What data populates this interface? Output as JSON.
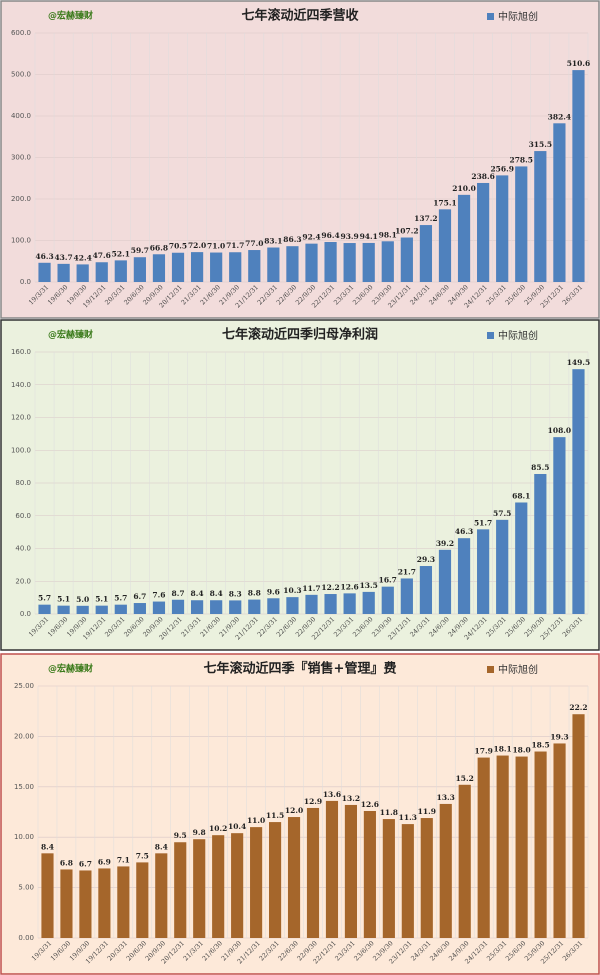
{
  "chart_data": [
    {
      "type": "bar",
      "title": "七年滚动近四季营收",
      "watermark": "@宏赫臻财",
      "background": "#f2dcdb",
      "border": "#888888",
      "categories": [
        "19/3/31",
        "19/6/30",
        "19/9/30",
        "19/12/31",
        "20/3/31",
        "20/6/30",
        "20/9/30",
        "20/12/31",
        "21/3/31",
        "21/6/30",
        "21/9/30",
        "21/12/31",
        "22/3/31",
        "22/6/30",
        "22/9/30",
        "22/12/31",
        "23/3/31",
        "23/6/30",
        "23/9/30",
        "23/12/31",
        "24/3/31",
        "24/6/30",
        "24/9/30",
        "24/12/31",
        "25/3/31",
        "25/6/30",
        "25/9/30",
        "25/12/31",
        "26/3/31"
      ],
      "series": [
        {
          "name": "中际旭创",
          "color": "#4f81bd",
          "values": [
            46.3,
            43.7,
            42.4,
            47.6,
            52.1,
            59.7,
            66.8,
            70.5,
            72.0,
            71.0,
            71.7,
            77.0,
            83.1,
            86.3,
            92.4,
            96.4,
            93.9,
            94.1,
            98.1,
            107.2,
            137.2,
            175.1,
            210.0,
            238.6,
            256.9,
            278.5,
            315.5,
            382.4,
            510.6
          ],
          "value_labels": [
            "46.3",
            "43.7",
            "42.4",
            "47.6",
            "52.1",
            "59.7",
            "66.8",
            "70.5",
            "72.0",
            "71.0",
            "71.7",
            "77.0",
            "83.1",
            "86.3",
            "92.4",
            "96.4",
            "93.9",
            "94.1",
            "98.1",
            "107.2",
            "137.2",
            "175.1",
            "210.0",
            "238.6",
            "256.9",
            "278.5",
            "315.5",
            "382.4",
            "510.6"
          ]
        }
      ],
      "ylim": [
        0,
        600
      ],
      "yticks": [
        {
          "value": 0,
          "label": "0.0"
        },
        {
          "value": 100,
          "label": "100.0"
        },
        {
          "value": 200,
          "label": "200.0"
        },
        {
          "value": 300,
          "label": "300.0"
        },
        {
          "value": 400,
          "label": "400.0"
        },
        {
          "value": 500,
          "label": "500.0"
        },
        {
          "value": 600,
          "label": "600.0"
        }
      ],
      "grid": true
    },
    {
      "type": "bar",
      "title": "七年滚动近四季归母净利润",
      "watermark": "@宏赫臻财",
      "background": "#ebf1de",
      "border": "#333333",
      "categories": [
        "19/3/31",
        "19/6/30",
        "19/9/30",
        "19/12/31",
        "20/3/31",
        "20/6/30",
        "20/9/30",
        "20/12/31",
        "21/3/31",
        "21/6/30",
        "21/9/30",
        "21/12/31",
        "22/3/31",
        "22/6/30",
        "22/9/30",
        "22/12/31",
        "23/3/31",
        "23/6/30",
        "23/9/30",
        "23/12/31",
        "24/3/31",
        "24/6/30",
        "24/9/30",
        "24/12/31",
        "25/3/31",
        "25/6/30",
        "25/9/30",
        "25/12/31",
        "26/3/31"
      ],
      "series": [
        {
          "name": "中际旭创",
          "color": "#4f81bd",
          "values": [
            5.7,
            5.1,
            5.0,
            5.1,
            5.7,
            6.7,
            7.6,
            8.7,
            8.4,
            8.4,
            8.3,
            8.8,
            9.6,
            10.3,
            11.7,
            12.2,
            12.6,
            13.5,
            16.7,
            21.7,
            29.3,
            39.2,
            46.3,
            51.7,
            57.5,
            68.1,
            85.5,
            108.0,
            149.5
          ],
          "value_labels": [
            "5.7",
            "5.1",
            "5.0",
            "5.1",
            "5.7",
            "6.7",
            "7.6",
            "8.7",
            "8.4",
            "8.4",
            "8.3",
            "8.8",
            "9.6",
            "10.3",
            "11.7",
            "12.2",
            "12.6",
            "13.5",
            "16.7",
            "21.7",
            "29.3",
            "39.2",
            "46.3",
            "51.7",
            "57.5",
            "68.1",
            "85.5",
            "108.0",
            "149.5"
          ]
        }
      ],
      "ylim": [
        0,
        160
      ],
      "yticks": [
        {
          "value": 0,
          "label": "0.0"
        },
        {
          "value": 20,
          "label": "20.0"
        },
        {
          "value": 40,
          "label": "40.0"
        },
        {
          "value": 60,
          "label": "60.0"
        },
        {
          "value": 80,
          "label": "80.0"
        },
        {
          "value": 100,
          "label": "100.0"
        },
        {
          "value": 120,
          "label": "120.0"
        },
        {
          "value": 140,
          "label": "140.0"
        },
        {
          "value": 160,
          "label": "160.0"
        }
      ],
      "grid": true
    },
    {
      "type": "bar",
      "title": "七年滚动近四季『销售+管理』费",
      "watermark": "@宏赫臻财",
      "background": "#fde9d9",
      "border": "#c0504d",
      "categories": [
        "19/3/31",
        "19/6/30",
        "19/9/30",
        "19/12/31",
        "20/3/31",
        "20/6/30",
        "20/9/30",
        "20/12/31",
        "21/3/31",
        "21/6/30",
        "21/9/30",
        "21/12/31",
        "22/3/31",
        "22/6/30",
        "22/9/30",
        "22/12/31",
        "23/3/31",
        "23/6/30",
        "23/9/30",
        "23/12/31",
        "24/3/31",
        "24/6/30",
        "24/9/30",
        "24/12/31",
        "25/3/31",
        "25/6/30",
        "25/9/30",
        "25/12/31",
        "26/3/31"
      ],
      "series": [
        {
          "name": "中际旭创",
          "color": "#a5662b",
          "values": [
            8.4,
            6.8,
            6.7,
            6.9,
            7.1,
            7.5,
            8.4,
            9.5,
            9.8,
            10.2,
            10.4,
            11.0,
            11.5,
            12.0,
            12.9,
            13.6,
            13.2,
            12.6,
            11.8,
            11.3,
            11.9,
            13.3,
            15.2,
            17.9,
            18.1,
            18.0,
            18.5,
            19.3,
            22.2
          ],
          "value_labels": [
            "8.4",
            "6.8",
            "6.7",
            "6.9",
            "7.1",
            "7.5",
            "8.4",
            "9.5",
            "9.8",
            "10.2",
            "10.4",
            "11.0",
            "11.5",
            "12.0",
            "12.9",
            "13.6",
            "13.2",
            "12.6",
            "11.8",
            "11.3",
            "11.9",
            "13.3",
            "15.2",
            "17.9",
            "18.1",
            "18.0",
            "18.5",
            "19.3",
            "22.2"
          ]
        }
      ],
      "ylim": [
        0,
        25
      ],
      "yticks": [
        {
          "value": 0,
          "label": "0.00"
        },
        {
          "value": 5,
          "label": "5.00"
        },
        {
          "value": 10,
          "label": "10.00"
        },
        {
          "value": 15,
          "label": "15.00"
        },
        {
          "value": 20,
          "label": "20.00"
        },
        {
          "value": 25,
          "label": "25.00"
        }
      ],
      "grid": true
    }
  ]
}
